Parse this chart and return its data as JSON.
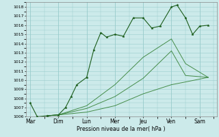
{
  "xlabel": "Pression niveau de la mer( hPa )",
  "ylim": [
    1006,
    1018.5
  ],
  "yticks": [
    1006,
    1007,
    1008,
    1009,
    1010,
    1011,
    1012,
    1013,
    1014,
    1015,
    1016,
    1017,
    1018
  ],
  "x_labels": [
    "Mar",
    "Dim",
    "Lun",
    "Mer",
    "Jeu",
    "Ven",
    "Sam"
  ],
  "x_positions": [
    0,
    1,
    2,
    3,
    4,
    5,
    6
  ],
  "xlim": [
    -0.15,
    6.6
  ],
  "bg_color": "#cceaea",
  "grid_color": "#99cccc",
  "line_color_dark": "#1a5c1a",
  "line_color_med": "#2e7d2e",
  "series1_x": [
    0.0,
    0.25,
    0.6,
    1.0,
    1.25,
    1.45,
    1.65,
    2.0,
    2.25,
    2.5,
    2.7,
    3.0,
    3.3,
    3.65,
    4.0,
    4.3,
    4.6,
    5.0,
    5.2,
    5.5,
    5.75,
    6.0,
    6.3
  ],
  "series1_y": [
    1007.5,
    1006.0,
    1006.1,
    1006.2,
    1007.0,
    1008.2,
    1009.5,
    1010.3,
    1013.3,
    1015.2,
    1014.7,
    1015.0,
    1014.8,
    1016.8,
    1016.8,
    1015.7,
    1015.9,
    1018.0,
    1018.2,
    1016.8,
    1015.0,
    1015.9,
    1016.0
  ],
  "series2_x": [
    0.6,
    1.0,
    2.0,
    3.0,
    4.0,
    5.0,
    5.5,
    6.3
  ],
  "series2_y": [
    1006.1,
    1006.2,
    1007.2,
    1009.5,
    1012.5,
    1014.5,
    1011.8,
    1010.3
  ],
  "series3_x": [
    0.6,
    1.0,
    2.0,
    3.0,
    4.0,
    5.0,
    5.5,
    6.3
  ],
  "series3_y": [
    1006.1,
    1006.2,
    1006.9,
    1008.2,
    1010.2,
    1013.2,
    1010.5,
    1010.3
  ],
  "series4_x": [
    0.6,
    1.0,
    2.0,
    3.0,
    4.0,
    5.0,
    5.5,
    6.3
  ],
  "series4_y": [
    1006.1,
    1006.2,
    1006.5,
    1007.2,
    1008.5,
    1009.5,
    1009.8,
    1010.3
  ]
}
